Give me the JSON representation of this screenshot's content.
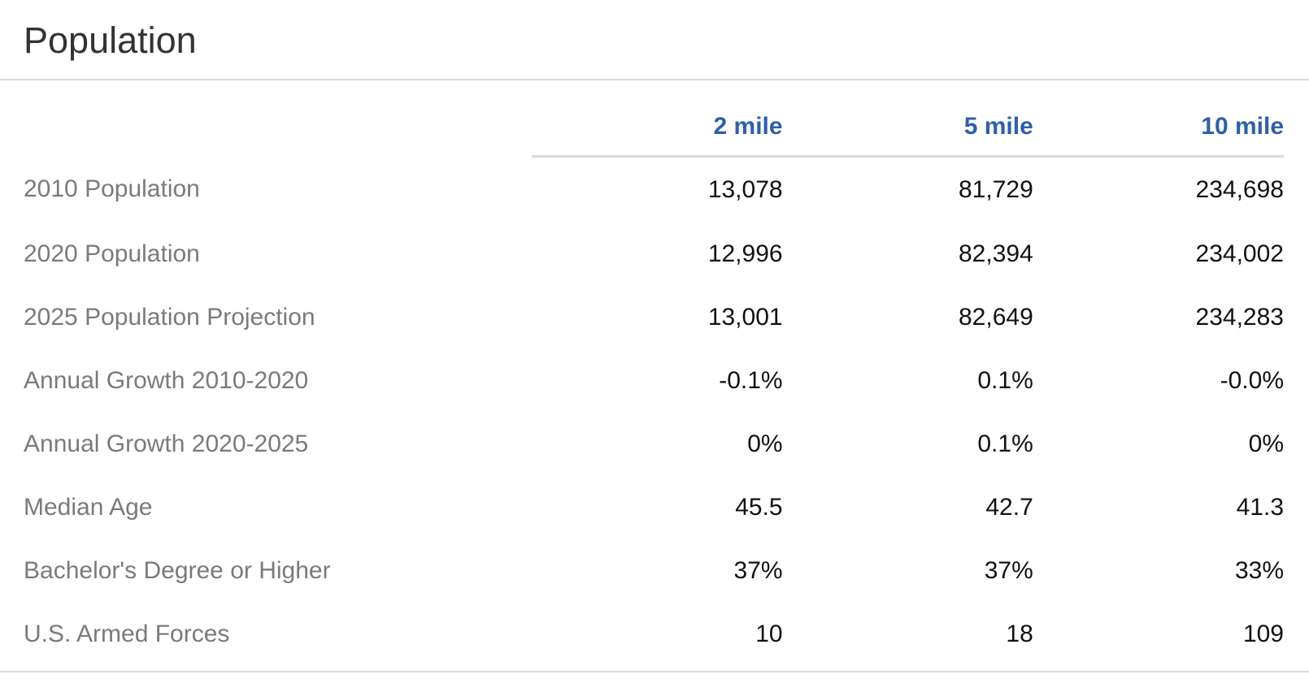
{
  "section": {
    "title": "Population"
  },
  "columns": [
    "2 mile",
    "5 mile",
    "10 mile"
  ],
  "rows": [
    {
      "label": "2010 Population",
      "values": [
        "13,078",
        "81,729",
        "234,698"
      ]
    },
    {
      "label": "2020 Population",
      "values": [
        "12,996",
        "82,394",
        "234,002"
      ]
    },
    {
      "label": "2025 Population Projection",
      "values": [
        "13,001",
        "82,649",
        "234,283"
      ]
    },
    {
      "label": "Annual Growth 2010-2020",
      "values": [
        "-0.1%",
        "0.1%",
        "-0.0%"
      ]
    },
    {
      "label": "Annual Growth 2020-2025",
      "values": [
        "0%",
        "0.1%",
        "0%"
      ]
    },
    {
      "label": "Median Age",
      "values": [
        "45.5",
        "42.7",
        "41.3"
      ]
    },
    {
      "label": "Bachelor's Degree or Higher",
      "values": [
        "37%",
        "37%",
        "33%"
      ]
    },
    {
      "label": "U.S. Armed Forces",
      "values": [
        "10",
        "18",
        "109"
      ]
    }
  ],
  "colors": {
    "header_accent": "#2f5fa8",
    "label_text": "#7a7a7a",
    "value_text": "#111111",
    "rule": "#d9d9d9"
  }
}
